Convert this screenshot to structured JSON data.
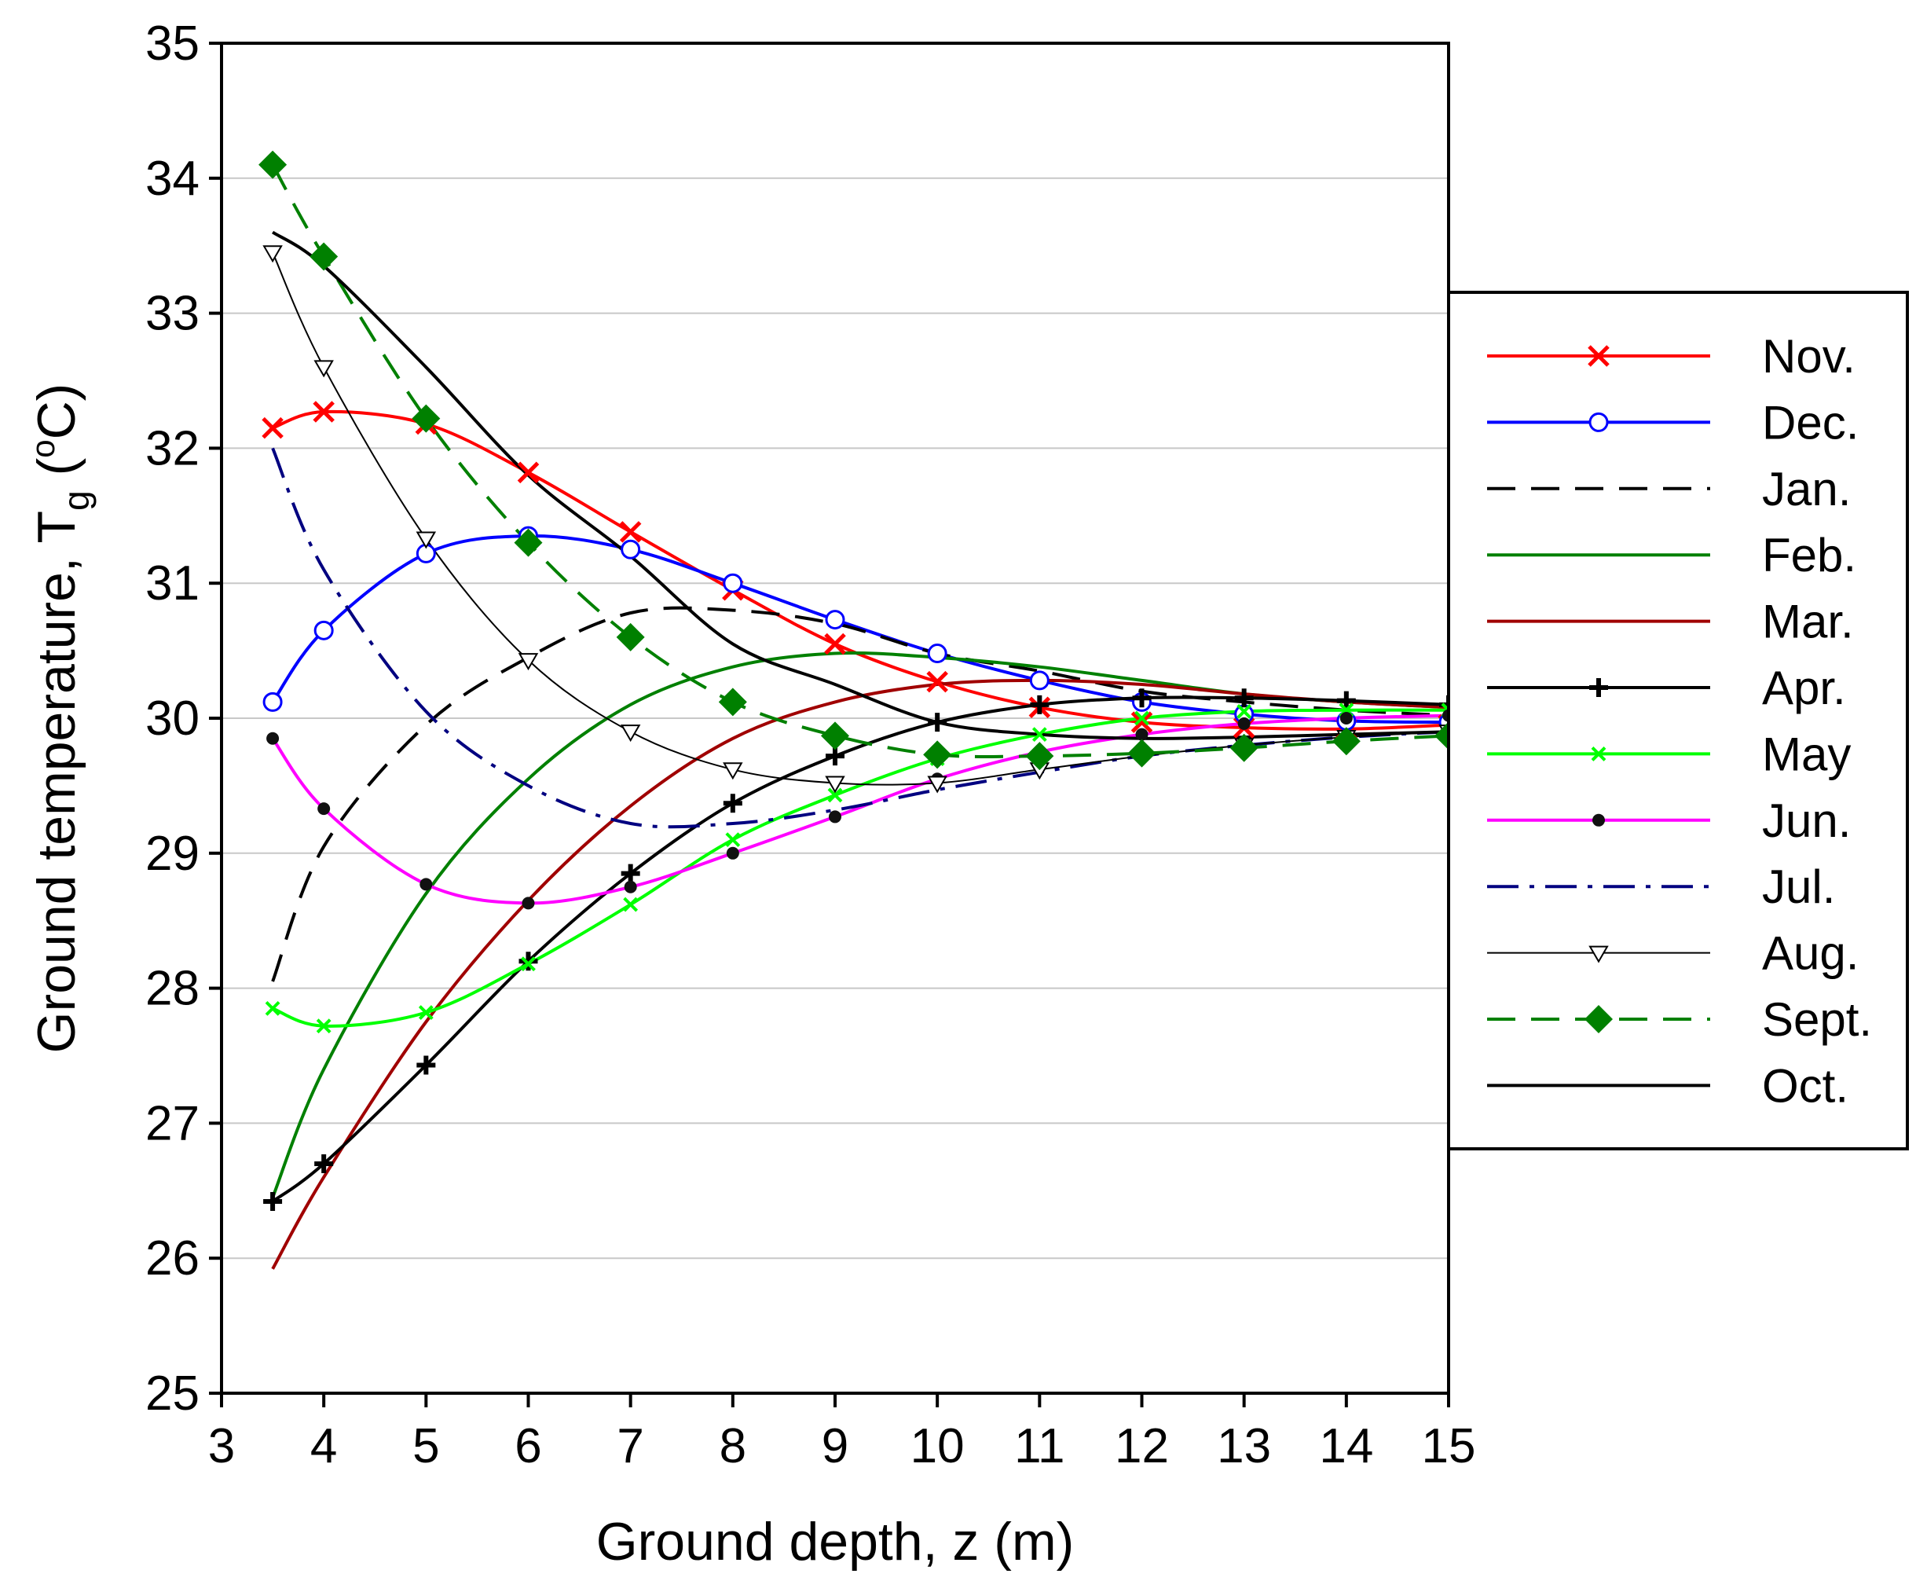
{
  "chart_data": {
    "type": "line",
    "title": "",
    "xlabel": "Ground depth, z (m)",
    "ylabel": {
      "main": "Ground temperature, T",
      "subscript": "g",
      "unit_open": " (",
      "degree": "o",
      "unit": "C)"
    },
    "xlim": [
      3,
      15
    ],
    "ylim": [
      25,
      35
    ],
    "x_ticks": [
      3,
      4,
      5,
      6,
      7,
      8,
      9,
      10,
      11,
      12,
      13,
      14,
      15
    ],
    "y_ticks": [
      25,
      26,
      27,
      28,
      29,
      30,
      31,
      32,
      33,
      34,
      35
    ],
    "grid": "horizontal",
    "legend_position": "right",
    "x": [
      3.5,
      4,
      5,
      6,
      7,
      8,
      9,
      10,
      11,
      12,
      13,
      14,
      15
    ],
    "series": [
      {
        "name": "Nov.",
        "color": "#ff0000",
        "dash": "solid",
        "marker": "x",
        "width": 4,
        "values": [
          32.15,
          32.27,
          32.18,
          31.82,
          31.38,
          30.95,
          30.55,
          30.27,
          30.08,
          29.97,
          29.93,
          29.92,
          29.95
        ]
      },
      {
        "name": "Dec.",
        "color": "#0000ff",
        "dash": "solid",
        "marker": "circle-open",
        "width": 4,
        "values": [
          30.12,
          30.65,
          31.22,
          31.35,
          31.25,
          31.0,
          30.73,
          30.48,
          30.28,
          30.12,
          30.03,
          29.98,
          29.97
        ]
      },
      {
        "name": "Jan.",
        "color": "#000000",
        "dash": "dash",
        "marker": "none",
        "width": 4,
        "values": [
          28.05,
          29.05,
          29.95,
          30.45,
          30.78,
          30.8,
          30.7,
          30.48,
          30.35,
          30.2,
          30.12,
          30.06,
          30.02
        ]
      },
      {
        "name": "Feb.",
        "color": "#008000",
        "dash": "solid",
        "marker": "none",
        "width": 4,
        "values": [
          26.45,
          27.4,
          28.7,
          29.55,
          30.1,
          30.38,
          30.48,
          30.45,
          30.38,
          30.28,
          30.18,
          30.12,
          30.08
        ]
      },
      {
        "name": "Mar.",
        "color": "#a00000",
        "dash": "solid",
        "marker": "none",
        "width": 4,
        "values": [
          25.92,
          26.6,
          27.75,
          28.65,
          29.35,
          29.85,
          30.12,
          30.25,
          30.28,
          30.25,
          30.18,
          30.12,
          30.08
        ]
      },
      {
        "name": "Apr.",
        "color": "#000000",
        "dash": "solid",
        "marker": "plus",
        "width": 4,
        "values": [
          26.42,
          26.7,
          27.43,
          28.2,
          28.85,
          29.37,
          29.72,
          29.97,
          30.1,
          30.15,
          30.15,
          30.13,
          30.1
        ]
      },
      {
        "name": "May",
        "color": "#00ff00",
        "dash": "solid",
        "marker": "x-small",
        "width": 4,
        "values": [
          27.85,
          27.72,
          27.82,
          28.18,
          28.62,
          29.1,
          29.43,
          29.7,
          29.88,
          30.0,
          30.05,
          30.06,
          30.06
        ]
      },
      {
        "name": "Jun.",
        "color": "#ff00ff",
        "dash": "solid",
        "marker": "dot",
        "width": 4,
        "values": [
          29.85,
          29.33,
          28.77,
          28.63,
          28.75,
          29.0,
          29.27,
          29.55,
          29.75,
          29.88,
          29.96,
          30.0,
          30.02
        ]
      },
      {
        "name": "Jul.",
        "color": "#000080",
        "dash": "dashdot",
        "marker": "none",
        "width": 4,
        "values": [
          32.0,
          31.1,
          30.05,
          29.5,
          29.22,
          29.22,
          29.32,
          29.47,
          29.6,
          29.72,
          29.8,
          29.86,
          29.9
        ]
      },
      {
        "name": "Aug.",
        "color": "#000000",
        "dash": "solid",
        "marker": "triangle-down-open",
        "width": 2,
        "values": [
          33.45,
          32.6,
          31.33,
          30.43,
          29.9,
          29.62,
          29.52,
          29.52,
          29.62,
          29.72,
          29.8,
          29.86,
          29.9
        ]
      },
      {
        "name": "Sept.",
        "color": "#008000",
        "dash": "dash",
        "marker": "diamond",
        "width": 4,
        "values": [
          34.1,
          33.42,
          32.22,
          31.3,
          30.6,
          30.12,
          29.87,
          29.73,
          29.72,
          29.74,
          29.78,
          29.83,
          29.87
        ]
      },
      {
        "name": "Oct.",
        "color": "#000000",
        "dash": "solid",
        "marker": "none",
        "width": 4,
        "values": [
          33.6,
          33.35,
          32.6,
          31.8,
          31.2,
          30.55,
          30.25,
          29.97,
          29.88,
          29.85,
          29.86,
          29.88,
          29.9
        ]
      }
    ]
  }
}
